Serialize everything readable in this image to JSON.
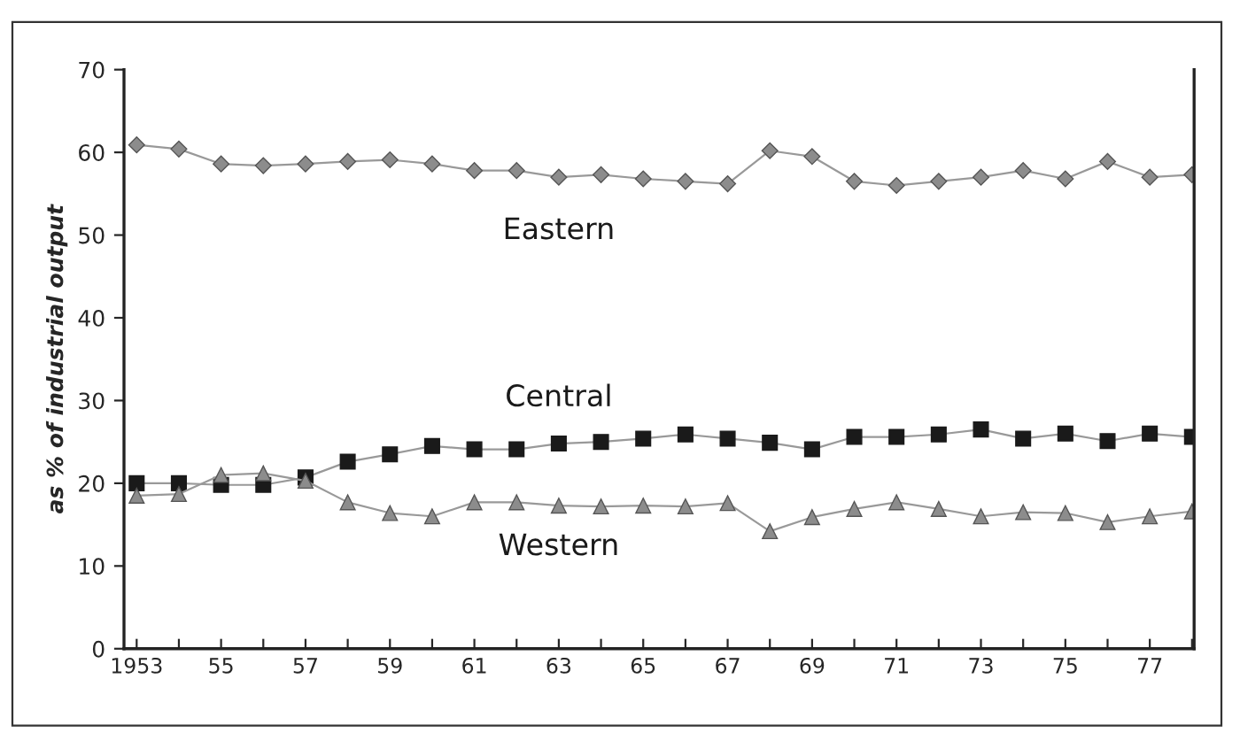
{
  "chart_data": {
    "type": "line",
    "categories": [
      "1953",
      null,
      "55",
      null,
      "57",
      null,
      "59",
      null,
      "61",
      null,
      "63",
      null,
      "65",
      null,
      "67",
      null,
      "69",
      null,
      "71",
      null,
      "73",
      null,
      "75",
      null,
      "77",
      null
    ],
    "ylabel": "as % of industrial output",
    "ylim": [
      0,
      70
    ],
    "yticks": [
      0,
      10,
      20,
      30,
      40,
      50,
      60,
      70
    ],
    "grid": false,
    "legend": false,
    "series": [
      {
        "name": "Eastern",
        "color": "#8c8c8c",
        "marker": "diamond",
        "values": [
          60.9,
          60.4,
          58.6,
          58.4,
          58.6,
          58.9,
          59.1,
          58.6,
          57.8,
          57.8,
          57.0,
          57.3,
          56.8,
          56.5,
          56.2,
          60.2,
          59.5,
          56.5,
          56.0,
          56.5,
          57.0,
          57.8,
          56.8,
          58.9,
          57.0,
          57.3
        ]
      },
      {
        "name": "Central",
        "color": "#1a1a1a",
        "marker": "square",
        "values": [
          20.0,
          20.0,
          19.8,
          19.8,
          20.7,
          22.6,
          23.5,
          24.5,
          24.1,
          24.1,
          24.8,
          25.0,
          25.4,
          25.9,
          25.4,
          24.9,
          24.1,
          25.6,
          25.6,
          25.9,
          26.5,
          25.4,
          26.0,
          25.1,
          26.0,
          25.6
        ]
      },
      {
        "name": "Western",
        "color": "#8c8c8c",
        "marker": "triangle",
        "values": [
          18.5,
          18.7,
          21.0,
          21.2,
          20.3,
          17.7,
          16.4,
          16.0,
          17.7,
          17.7,
          17.3,
          17.2,
          17.3,
          17.2,
          17.6,
          14.2,
          15.9,
          16.9,
          17.7,
          16.9,
          16.0,
          16.5,
          16.4,
          15.3,
          16.0,
          16.6
        ]
      }
    ]
  }
}
